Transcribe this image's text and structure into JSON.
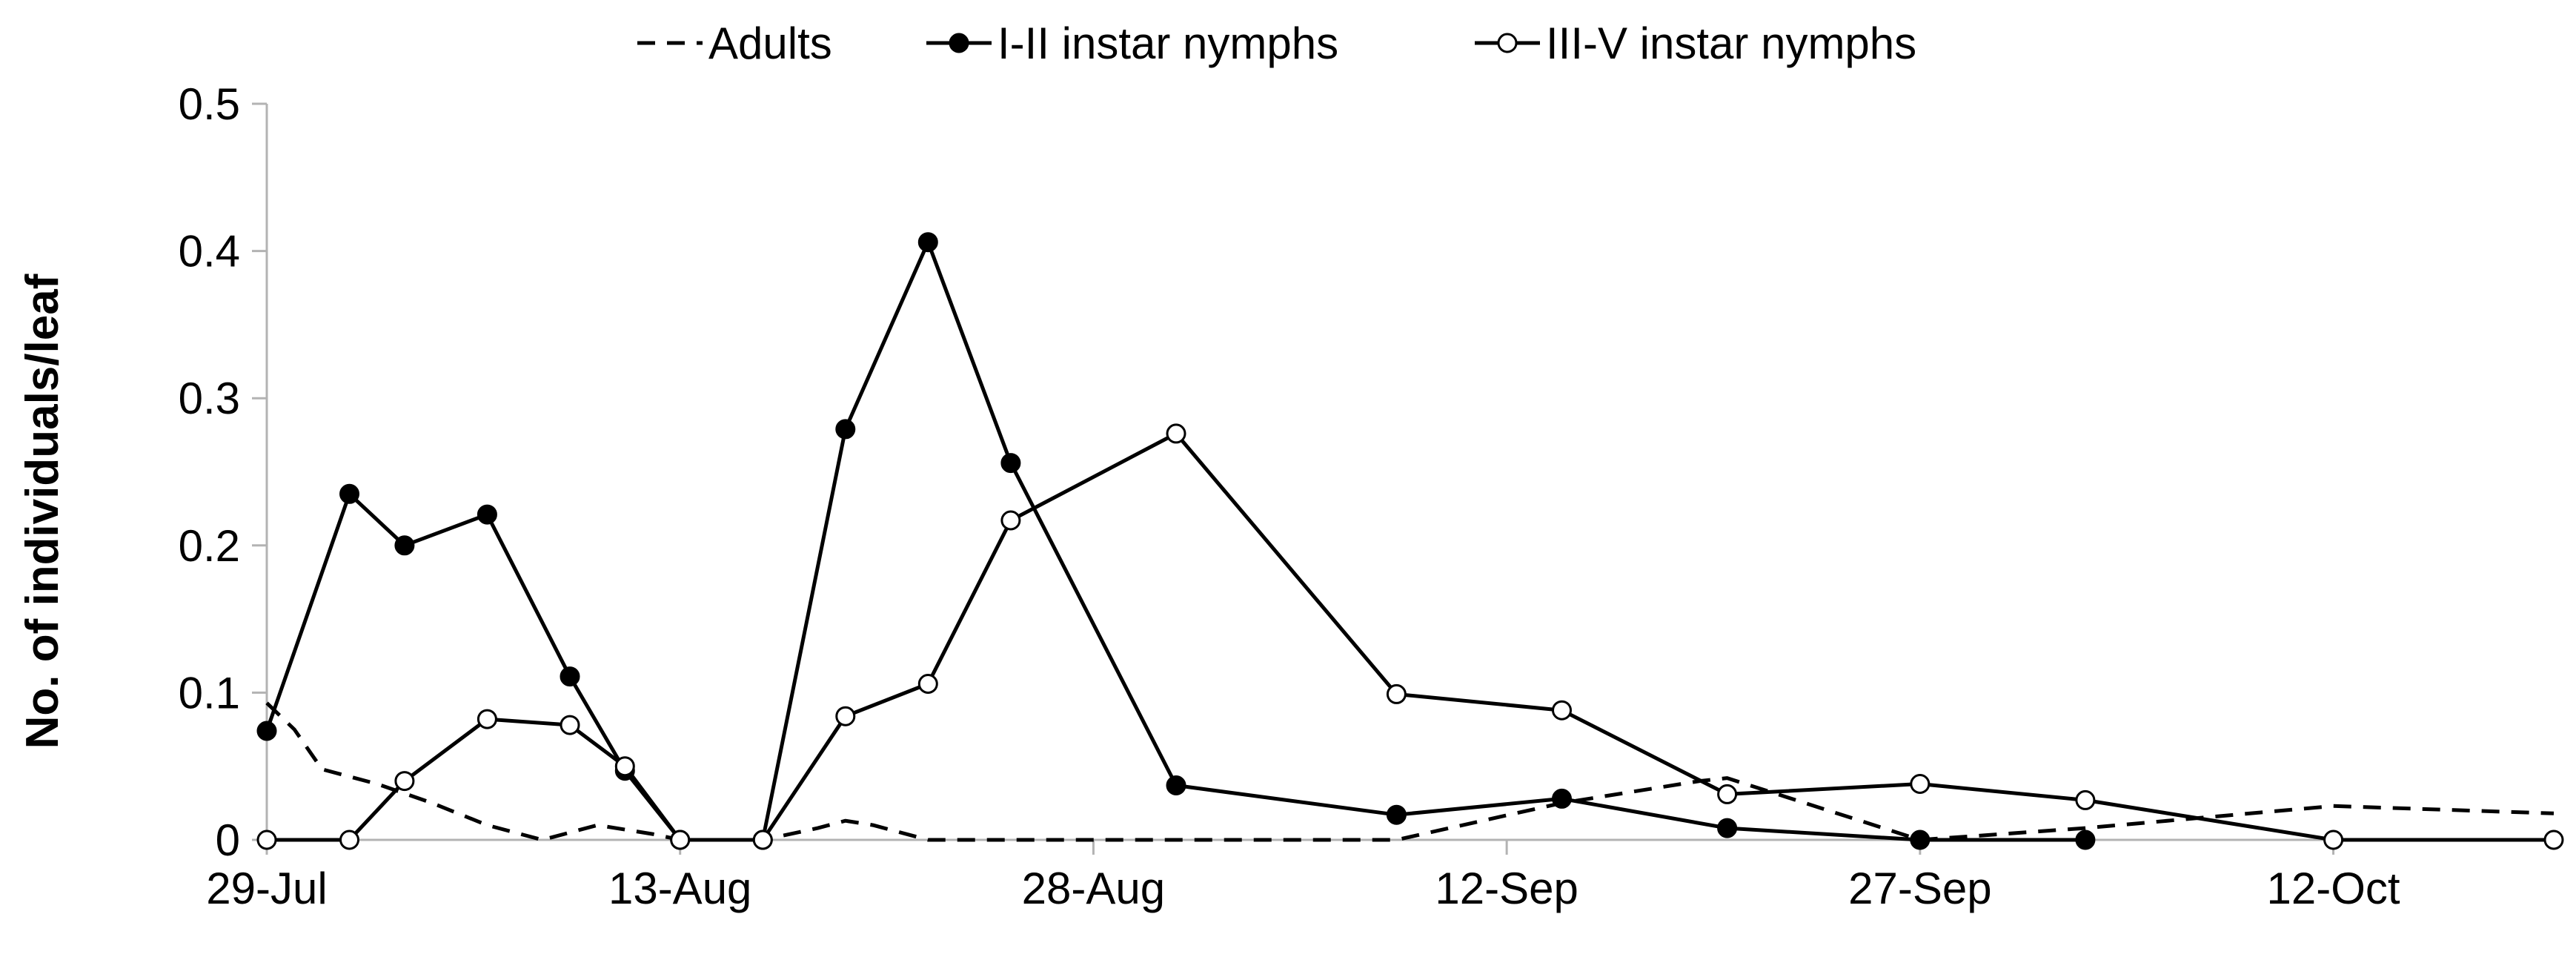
{
  "chart_data": {
    "type": "line",
    "ylabel": "No. of individuals/leaf",
    "xlabel": "",
    "ylim": [
      0,
      0.5
    ],
    "yticks": [
      "0",
      "0.1",
      "0.2",
      "0.3",
      "0.4",
      "0.5"
    ],
    "xlim": [
      "2000-07-29",
      "2000-10-20"
    ],
    "xticks": [
      {
        "date": "2000-07-29",
        "label": "29-Jul"
      },
      {
        "date": "2000-08-13",
        "label": "13-Aug"
      },
      {
        "date": "2000-08-28",
        "label": "28-Aug"
      },
      {
        "date": "2000-09-12",
        "label": "12-Sep"
      },
      {
        "date": "2000-09-27",
        "label": "27-Sep"
      },
      {
        "date": "2000-10-12",
        "label": "12-Oct"
      }
    ],
    "grid": false,
    "legend_position": "top",
    "series": [
      {
        "name": "Adults",
        "style": "dashed",
        "marker": "none",
        "color": "#000000",
        "points": [
          [
            "2000-07-29",
            0.093
          ],
          [
            "2000-07-30",
            0.075
          ],
          [
            "2000-07-31",
            0.048
          ],
          [
            "2000-08-02",
            0.038
          ],
          [
            "2000-08-04",
            0.025
          ],
          [
            "2000-08-06",
            0.01
          ],
          [
            "2000-08-08",
            0.0
          ],
          [
            "2000-08-10",
            0.01
          ],
          [
            "2000-08-12",
            0.004
          ],
          [
            "2000-08-13",
            0.0
          ],
          [
            "2000-08-16",
            0.0
          ],
          [
            "2000-08-18",
            0.008
          ],
          [
            "2000-08-19",
            0.013
          ],
          [
            "2000-08-20",
            0.01
          ],
          [
            "2000-08-22",
            0.0
          ],
          [
            "2000-08-31",
            0.0
          ],
          [
            "2000-09-08",
            0.0
          ],
          [
            "2000-09-14",
            0.025
          ],
          [
            "2000-09-19",
            0.04
          ],
          [
            "2000-09-20",
            0.042
          ],
          [
            "2000-09-27",
            0.0
          ],
          [
            "2000-10-03",
            0.008
          ],
          [
            "2000-10-12",
            0.023
          ],
          [
            "2000-10-20",
            0.018
          ]
        ]
      },
      {
        "name": "I-II instar nymphs",
        "style": "solid",
        "marker": "filled",
        "color": "#000000",
        "points": [
          [
            "2000-07-29",
            0.074
          ],
          [
            "2000-08-01",
            0.235
          ],
          [
            "2000-08-03",
            0.2
          ],
          [
            "2000-08-06",
            0.221
          ],
          [
            "2000-08-09",
            0.111
          ],
          [
            "2000-08-11",
            0.047
          ],
          [
            "2000-08-13",
            0.0
          ],
          [
            "2000-08-16",
            0.0
          ],
          [
            "2000-08-19",
            0.279
          ],
          [
            "2000-08-22",
            0.406
          ],
          [
            "2000-08-25",
            0.256
          ],
          [
            "2000-08-31",
            0.037
          ],
          [
            "2000-09-08",
            0.017
          ],
          [
            "2000-09-14",
            0.028
          ],
          [
            "2000-09-20",
            0.008
          ],
          [
            "2000-09-27",
            0.0
          ],
          [
            "2000-10-03",
            0.0
          ]
        ]
      },
      {
        "name": "III-V instar nymphs",
        "style": "solid",
        "marker": "open",
        "color": "#000000",
        "points": [
          [
            "2000-07-29",
            0.0
          ],
          [
            "2000-08-01",
            0.0
          ],
          [
            "2000-08-03",
            0.04
          ],
          [
            "2000-08-06",
            0.082
          ],
          [
            "2000-08-09",
            0.078
          ],
          [
            "2000-08-11",
            0.05
          ],
          [
            "2000-08-13",
            0.0
          ],
          [
            "2000-08-16",
            0.0
          ],
          [
            "2000-08-19",
            0.084
          ],
          [
            "2000-08-22",
            0.106
          ],
          [
            "2000-08-25",
            0.217
          ],
          [
            "2000-08-31",
            0.276
          ],
          [
            "2000-09-08",
            0.099
          ],
          [
            "2000-09-14",
            0.088
          ],
          [
            "2000-09-20",
            0.031
          ],
          [
            "2000-09-27",
            0.038
          ],
          [
            "2000-10-03",
            0.027
          ],
          [
            "2000-10-12",
            0.0
          ],
          [
            "2000-10-20",
            0.0
          ]
        ]
      }
    ]
  }
}
